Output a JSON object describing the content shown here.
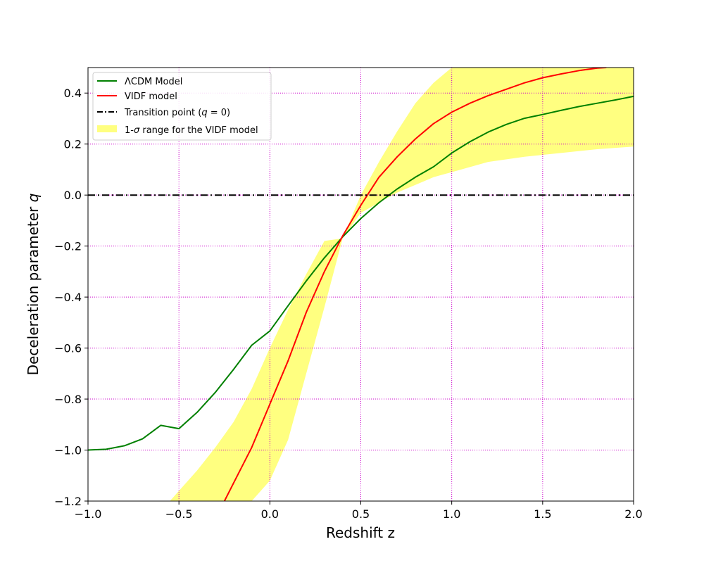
{
  "chart_data": {
    "type": "line",
    "title": "",
    "xlabel": "Redshift z",
    "ylabel": "Deceleration parameter q",
    "xlim": [
      -1.0,
      2.0
    ],
    "ylim": [
      -1.2,
      0.5
    ],
    "x_ticks": [
      -1.0,
      -0.5,
      0.0,
      0.5,
      1.0,
      1.5,
      2.0
    ],
    "x_tick_labels": [
      "−1.0",
      "−0.5",
      "0.0",
      "0.5",
      "1.0",
      "1.5",
      "2.0"
    ],
    "y_ticks": [
      -1.2,
      -1.0,
      -0.8,
      -0.6,
      -0.4,
      -0.2,
      0.0,
      0.2,
      0.4
    ],
    "y_tick_labels": [
      "−1.2",
      "−1.0",
      "−0.8",
      "−0.6",
      "−0.4",
      "−0.2",
      "0.0",
      "0.2",
      "0.4"
    ],
    "grid": true,
    "grid_color": "#cc00cc",
    "grid_style": "dotted",
    "legend_position": "top-left",
    "series": [
      {
        "name": "ΛCDM Model",
        "color": "#008000",
        "style": "solid",
        "x": [
          -1.0,
          -0.9,
          -0.8,
          -0.7,
          -0.6,
          -0.5,
          -0.4,
          -0.3,
          -0.2,
          -0.1,
          0.0,
          0.1,
          0.2,
          0.3,
          0.4,
          0.5,
          0.6,
          0.7,
          0.8,
          0.9,
          1.0,
          1.1,
          1.2,
          1.3,
          1.4,
          1.5,
          1.6,
          1.7,
          1.8,
          1.9,
          2.0
        ],
        "y": [
          -1.0,
          -0.997,
          -0.983,
          -0.956,
          -0.903,
          -0.916,
          -0.852,
          -0.774,
          -0.684,
          -0.589,
          -0.533,
          -0.434,
          -0.337,
          -0.246,
          -0.164,
          -0.092,
          -0.03,
          0.024,
          0.07,
          0.111,
          0.165,
          0.209,
          0.247,
          0.277,
          0.301,
          0.316,
          0.332,
          0.347,
          0.36,
          0.373,
          0.387
        ]
      },
      {
        "name": "VIDF model",
        "color": "#ff0000",
        "style": "solid",
        "x": [
          -0.25,
          -0.2,
          -0.1,
          0.0,
          0.1,
          0.2,
          0.3,
          0.4,
          0.5,
          0.6,
          0.7,
          0.8,
          0.9,
          1.0,
          1.1,
          1.2,
          1.3,
          1.4,
          1.5,
          1.6,
          1.7,
          1.8,
          1.85
        ],
        "y": [
          -1.2,
          -1.13,
          -0.99,
          -0.82,
          -0.65,
          -0.46,
          -0.3,
          -0.16,
          -0.04,
          0.07,
          0.15,
          0.22,
          0.28,
          0.325,
          0.36,
          0.39,
          0.415,
          0.44,
          0.46,
          0.475,
          0.488,
          0.498,
          0.5
        ]
      },
      {
        "name": "Transition point (q = 0)",
        "color": "#000000",
        "style": "dashdot",
        "x": [
          -1.0,
          2.0
        ],
        "y": [
          0.0,
          0.0
        ]
      }
    ],
    "band": {
      "name": "1-σ range for the VIDF model",
      "color": "#ffff80",
      "x": [
        -0.55,
        -0.5,
        -0.4,
        -0.3,
        -0.2,
        -0.1,
        0.0,
        0.1,
        0.2,
        0.3,
        0.4,
        0.5,
        0.6,
        0.7,
        0.8,
        0.9,
        1.0,
        1.2,
        1.4,
        1.6,
        1.8,
        2.0
      ],
      "upper": [
        -1.2,
        -1.16,
        -1.08,
        -0.99,
        -0.89,
        -0.76,
        -0.6,
        -0.45,
        -0.31,
        -0.18,
        -0.17,
        0.0,
        0.13,
        0.25,
        0.36,
        0.44,
        0.5,
        0.5,
        0.5,
        0.5,
        0.5,
        0.5
      ],
      "lower": [
        -1.2,
        -1.2,
        -1.2,
        -1.2,
        -1.2,
        -1.2,
        -1.12,
        -0.96,
        -0.7,
        -0.44,
        -0.17,
        -0.07,
        -0.03,
        0.01,
        0.04,
        0.07,
        0.09,
        0.13,
        0.15,
        0.165,
        0.18,
        0.19
      ]
    }
  },
  "legend": {
    "items": [
      {
        "key": "lcdm",
        "label": "ΛCDM Model",
        "color": "#008000",
        "kind": "solid"
      },
      {
        "key": "vidf",
        "label": "VIDF model",
        "color": "#ff0000",
        "kind": "solid"
      },
      {
        "key": "transition",
        "label": "Transition point (q = 0)",
        "color": "#000000",
        "kind": "dashdot"
      },
      {
        "key": "band",
        "label": "1-σ range for the VIDF model",
        "color": "#ffff80",
        "kind": "patch"
      }
    ]
  }
}
